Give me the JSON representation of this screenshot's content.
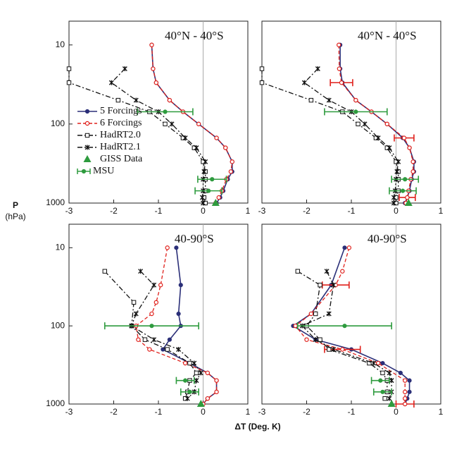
{
  "axis_labels": {
    "y": "P",
    "y_unit": "(hPa)",
    "x": "ΔT  (Deg. K)"
  },
  "chart_data": [
    {
      "type": "line",
      "title": "40°N - 40°S",
      "xlim": [
        -3,
        1
      ],
      "xticks": [
        -3,
        -2,
        -1,
        0,
        1
      ],
      "ylim": [
        1000,
        5
      ],
      "yticks": [
        10,
        100,
        1000
      ],
      "log_y": true,
      "legend": "left",
      "series": [
        {
          "name": "5 Forcings",
          "color": "#2b2f78",
          "marker": "dot",
          "dash": "solid",
          "line": true,
          "y": [
            10,
            20,
            30,
            50,
            70,
            100,
            150,
            200,
            300,
            400,
            500,
            700,
            850,
            1000
          ],
          "x": [
            -1.15,
            -1.12,
            -1.05,
            -0.75,
            -0.45,
            -0.1,
            0.3,
            0.5,
            0.65,
            0.65,
            0.55,
            0.45,
            0.38,
            0.3
          ]
        },
        {
          "name": "6 Forcings",
          "color": "#e0201b",
          "marker": "circle",
          "dash": "dashed",
          "line": true,
          "y": [
            10,
            20,
            30,
            50,
            70,
            100,
            150,
            200,
            300,
            400,
            500,
            700,
            850,
            1000
          ],
          "x": [
            -1.15,
            -1.12,
            -1.05,
            -0.75,
            -0.45,
            -0.1,
            0.3,
            0.5,
            0.65,
            0.62,
            0.52,
            0.42,
            0.35,
            0.28
          ]
        },
        {
          "name": "HadRT2.0",
          "color": "#111111",
          "marker": "square",
          "dash": "dashdot",
          "line": true,
          "y": [
            20,
            30,
            50,
            70,
            100,
            150,
            200,
            300,
            400,
            500,
            700,
            850,
            1000
          ],
          "x": [
            -3,
            -3,
            -1.9,
            -1.2,
            -0.85,
            -0.45,
            -0.2,
            0.0,
            0.05,
            0.05,
            0.05,
            0.02,
            0.05
          ]
        },
        {
          "name": "HadRT2.1",
          "color": "#111111",
          "marker": "star",
          "dash": "dashdot",
          "line": true,
          "y": [
            20,
            30,
            50,
            70,
            100,
            150,
            200,
            300,
            400,
            500,
            700,
            850,
            1000
          ],
          "x": [
            -1.75,
            -2.05,
            -1.5,
            -1.0,
            -0.7,
            -0.4,
            -0.15,
            0.05,
            0.02,
            0.0,
            0.0,
            -0.02,
            0.0
          ]
        },
        {
          "name": "GISS Data",
          "color": "#2e9b3e",
          "marker": "triangle",
          "line": false,
          "y": [
            1000
          ],
          "x": [
            0.28
          ]
        },
        {
          "name": "MSU",
          "color": "#2e9b3e",
          "marker": "dot",
          "line": false,
          "y": [
            70,
            500,
            700
          ],
          "x": [
            -0.85,
            0.2,
            0.12
          ],
          "errors": [
            0.62,
            0.32,
            0.3
          ]
        }
      ]
    },
    {
      "type": "line",
      "title": "40°N - 40°S",
      "xlim": [
        -3,
        1
      ],
      "xticks": [
        -3,
        -2,
        -1,
        0,
        1
      ],
      "ylim": [
        1000,
        5
      ],
      "log_y": true,
      "series": [
        {
          "color": "#2b2f78",
          "marker": "dot",
          "dash": "solid",
          "line": true,
          "y": [
            10,
            20,
            30,
            50,
            70,
            100,
            150,
            200,
            300,
            400,
            500,
            700,
            850,
            1000
          ],
          "x": [
            -1.25,
            -1.25,
            -1.2,
            -0.9,
            -0.55,
            -0.2,
            0.15,
            0.3,
            0.4,
            0.4,
            0.35,
            0.3,
            0.25,
            0.2
          ]
        },
        {
          "color": "#e0201b",
          "marker": "circle",
          "dash": "dashed",
          "line": true,
          "y": [
            10,
            20,
            30,
            50,
            70,
            100,
            150,
            200,
            300,
            400,
            500,
            700,
            850,
            1000
          ],
          "x": [
            -1.28,
            -1.27,
            -1.22,
            -0.9,
            -0.55,
            -0.2,
            0.18,
            0.3,
            0.38,
            0.38,
            0.33,
            0.28,
            0.25,
            0.22
          ],
          "errors": [
            null,
            null,
            0.25,
            null,
            null,
            null,
            0.22,
            null,
            null,
            null,
            null,
            null,
            0.18,
            null
          ]
        },
        {
          "color": "#111111",
          "marker": "square",
          "dash": "dashdot",
          "line": true,
          "y": [
            20,
            30,
            50,
            70,
            100,
            150,
            200,
            300,
            400,
            500,
            700,
            850,
            1000
          ],
          "x": [
            -3,
            -3,
            -1.9,
            -1.2,
            -0.85,
            -0.45,
            -0.2,
            0.0,
            0.05,
            0.05,
            0.05,
            0.0,
            0.0
          ]
        },
        {
          "color": "#111111",
          "marker": "star",
          "dash": "dashdot",
          "line": true,
          "y": [
            20,
            30,
            50,
            70,
            100,
            150,
            200,
            300,
            400,
            500,
            700,
            850,
            1000
          ],
          "x": [
            -1.75,
            -2.05,
            -1.5,
            -1.0,
            -0.7,
            -0.4,
            -0.15,
            0.05,
            0.02,
            0.0,
            -0.02,
            -0.05,
            -0.05
          ]
        },
        {
          "color": "#2e9b3e",
          "marker": "triangle",
          "line": false,
          "y": [
            1000
          ],
          "x": [
            0.28
          ]
        },
        {
          "color": "#2e9b3e",
          "marker": "dot",
          "line": false,
          "y": [
            70,
            500,
            700
          ],
          "x": [
            -0.9,
            0.2,
            0.15
          ],
          "errors": [
            0.7,
            0.3,
            0.3
          ]
        }
      ]
    },
    {
      "type": "line",
      "title": "40-90°S",
      "xlim": [
        -3,
        1
      ],
      "xticks": [
        -3,
        -2,
        -1,
        0,
        1
      ],
      "ylim": [
        1000,
        5
      ],
      "yticks": [
        10,
        100,
        1000
      ],
      "log_y": true,
      "series": [
        {
          "color": "#2b2f78",
          "marker": "dot",
          "dash": "solid",
          "line": true,
          "y": [
            10,
            30,
            70,
            100,
            150,
            200,
            300,
            400,
            500,
            700,
            850,
            1000
          ],
          "x": [
            -0.6,
            -0.5,
            -0.55,
            -0.5,
            -0.75,
            -0.9,
            -0.3,
            0.1,
            0.3,
            0.3,
            0.1,
            0.0
          ]
        },
        {
          "color": "#e0201b",
          "marker": "circle",
          "dash": "dashed",
          "line": true,
          "y": [
            10,
            30,
            50,
            70,
            100,
            150,
            200,
            300,
            400,
            500,
            700,
            850,
            1000
          ],
          "x": [
            -0.8,
            -0.95,
            -1.05,
            -1.15,
            -1.5,
            -1.45,
            -1.2,
            -0.4,
            0.1,
            0.3,
            0.3,
            0.1,
            0.0
          ]
        },
        {
          "color": "#111111",
          "marker": "square",
          "dash": "dashdot",
          "line": true,
          "y": [
            20,
            50,
            100,
            150,
            200,
            300,
            400,
            500,
            700,
            850
          ],
          "x": [
            -2.2,
            -1.55,
            -1.6,
            -1.3,
            -0.8,
            -0.3,
            -0.15,
            -0.3,
            -0.35,
            -0.4
          ]
        },
        {
          "color": "#111111",
          "marker": "star",
          "dash": "dashdot",
          "line": true,
          "y": [
            20,
            30,
            70,
            100,
            150,
            200,
            300,
            400,
            500,
            700,
            850
          ],
          "x": [
            -1.4,
            -1.1,
            -1.5,
            -1.6,
            -1.1,
            -0.55,
            -0.2,
            -0.05,
            -0.15,
            -0.2,
            -0.35
          ]
        },
        {
          "color": "#2e9b3e",
          "marker": "triangle",
          "line": false,
          "y": [
            1000
          ],
          "x": [
            -0.05
          ]
        },
        {
          "color": "#2e9b3e",
          "marker": "dot",
          "line": false,
          "y": [
            100,
            500,
            700
          ],
          "x": [
            -1.15,
            -0.4,
            -0.3
          ],
          "errors": [
            1.05,
            0.2,
            0.2
          ]
        }
      ]
    },
    {
      "type": "line",
      "title": "40-90°S",
      "xlim": [
        -3,
        1
      ],
      "xticks": [
        -3,
        -2,
        -1,
        0,
        1
      ],
      "ylim": [
        1000,
        5
      ],
      "log_y": true,
      "series": [
        {
          "color": "#2b2f78",
          "marker": "dot",
          "dash": "solid",
          "line": true,
          "y": [
            10,
            30,
            70,
            100,
            150,
            200,
            300,
            400,
            500,
            700,
            850,
            1000
          ],
          "x": [
            -1.15,
            -1.45,
            -1.9,
            -2.3,
            -1.8,
            -1.0,
            -0.3,
            0.1,
            0.3,
            0.3,
            0.25,
            0.2
          ]
        },
        {
          "color": "#e0201b",
          "marker": "circle",
          "dash": "dashed",
          "line": true,
          "y": [
            10,
            20,
            30,
            70,
            100,
            150,
            200,
            300,
            500,
            700,
            850,
            1000
          ],
          "x": [
            -1.05,
            -1.2,
            -1.35,
            -1.9,
            -2.25,
            -2.0,
            -1.2,
            -0.4,
            0.2,
            0.2,
            0.2,
            0.2
          ],
          "errors": [
            null,
            null,
            0.3,
            null,
            null,
            null,
            0.4,
            null,
            null,
            null,
            null,
            0.2
          ]
        },
        {
          "color": "#111111",
          "marker": "square",
          "dash": "dashdot",
          "line": true,
          "y": [
            20,
            30,
            70,
            100,
            150,
            200,
            300,
            400,
            500,
            700,
            850
          ],
          "x": [
            -2.2,
            -1.7,
            -1.8,
            -2.0,
            -1.7,
            -1.5,
            -0.6,
            -0.3,
            -0.2,
            -0.2,
            -0.25
          ]
        },
        {
          "color": "#111111",
          "marker": "star",
          "dash": "dashdot",
          "line": true,
          "y": [
            20,
            30,
            70,
            100,
            150,
            200,
            300,
            400,
            500,
            700,
            850
          ],
          "x": [
            -1.55,
            -1.4,
            -1.5,
            -2.1,
            -1.8,
            -1.4,
            -0.5,
            -0.15,
            -0.1,
            -0.1,
            -0.15
          ]
        },
        {
          "color": "#2e9b3e",
          "marker": "triangle",
          "line": false,
          "y": [
            1000
          ],
          "x": [
            -0.1
          ]
        },
        {
          "color": "#2e9b3e",
          "marker": "dot",
          "line": false,
          "y": [
            100,
            500,
            700
          ],
          "x": [
            -1.15,
            -0.35,
            -0.3
          ],
          "errors": [
            1.05,
            0.2,
            0.2
          ]
        }
      ]
    }
  ]
}
